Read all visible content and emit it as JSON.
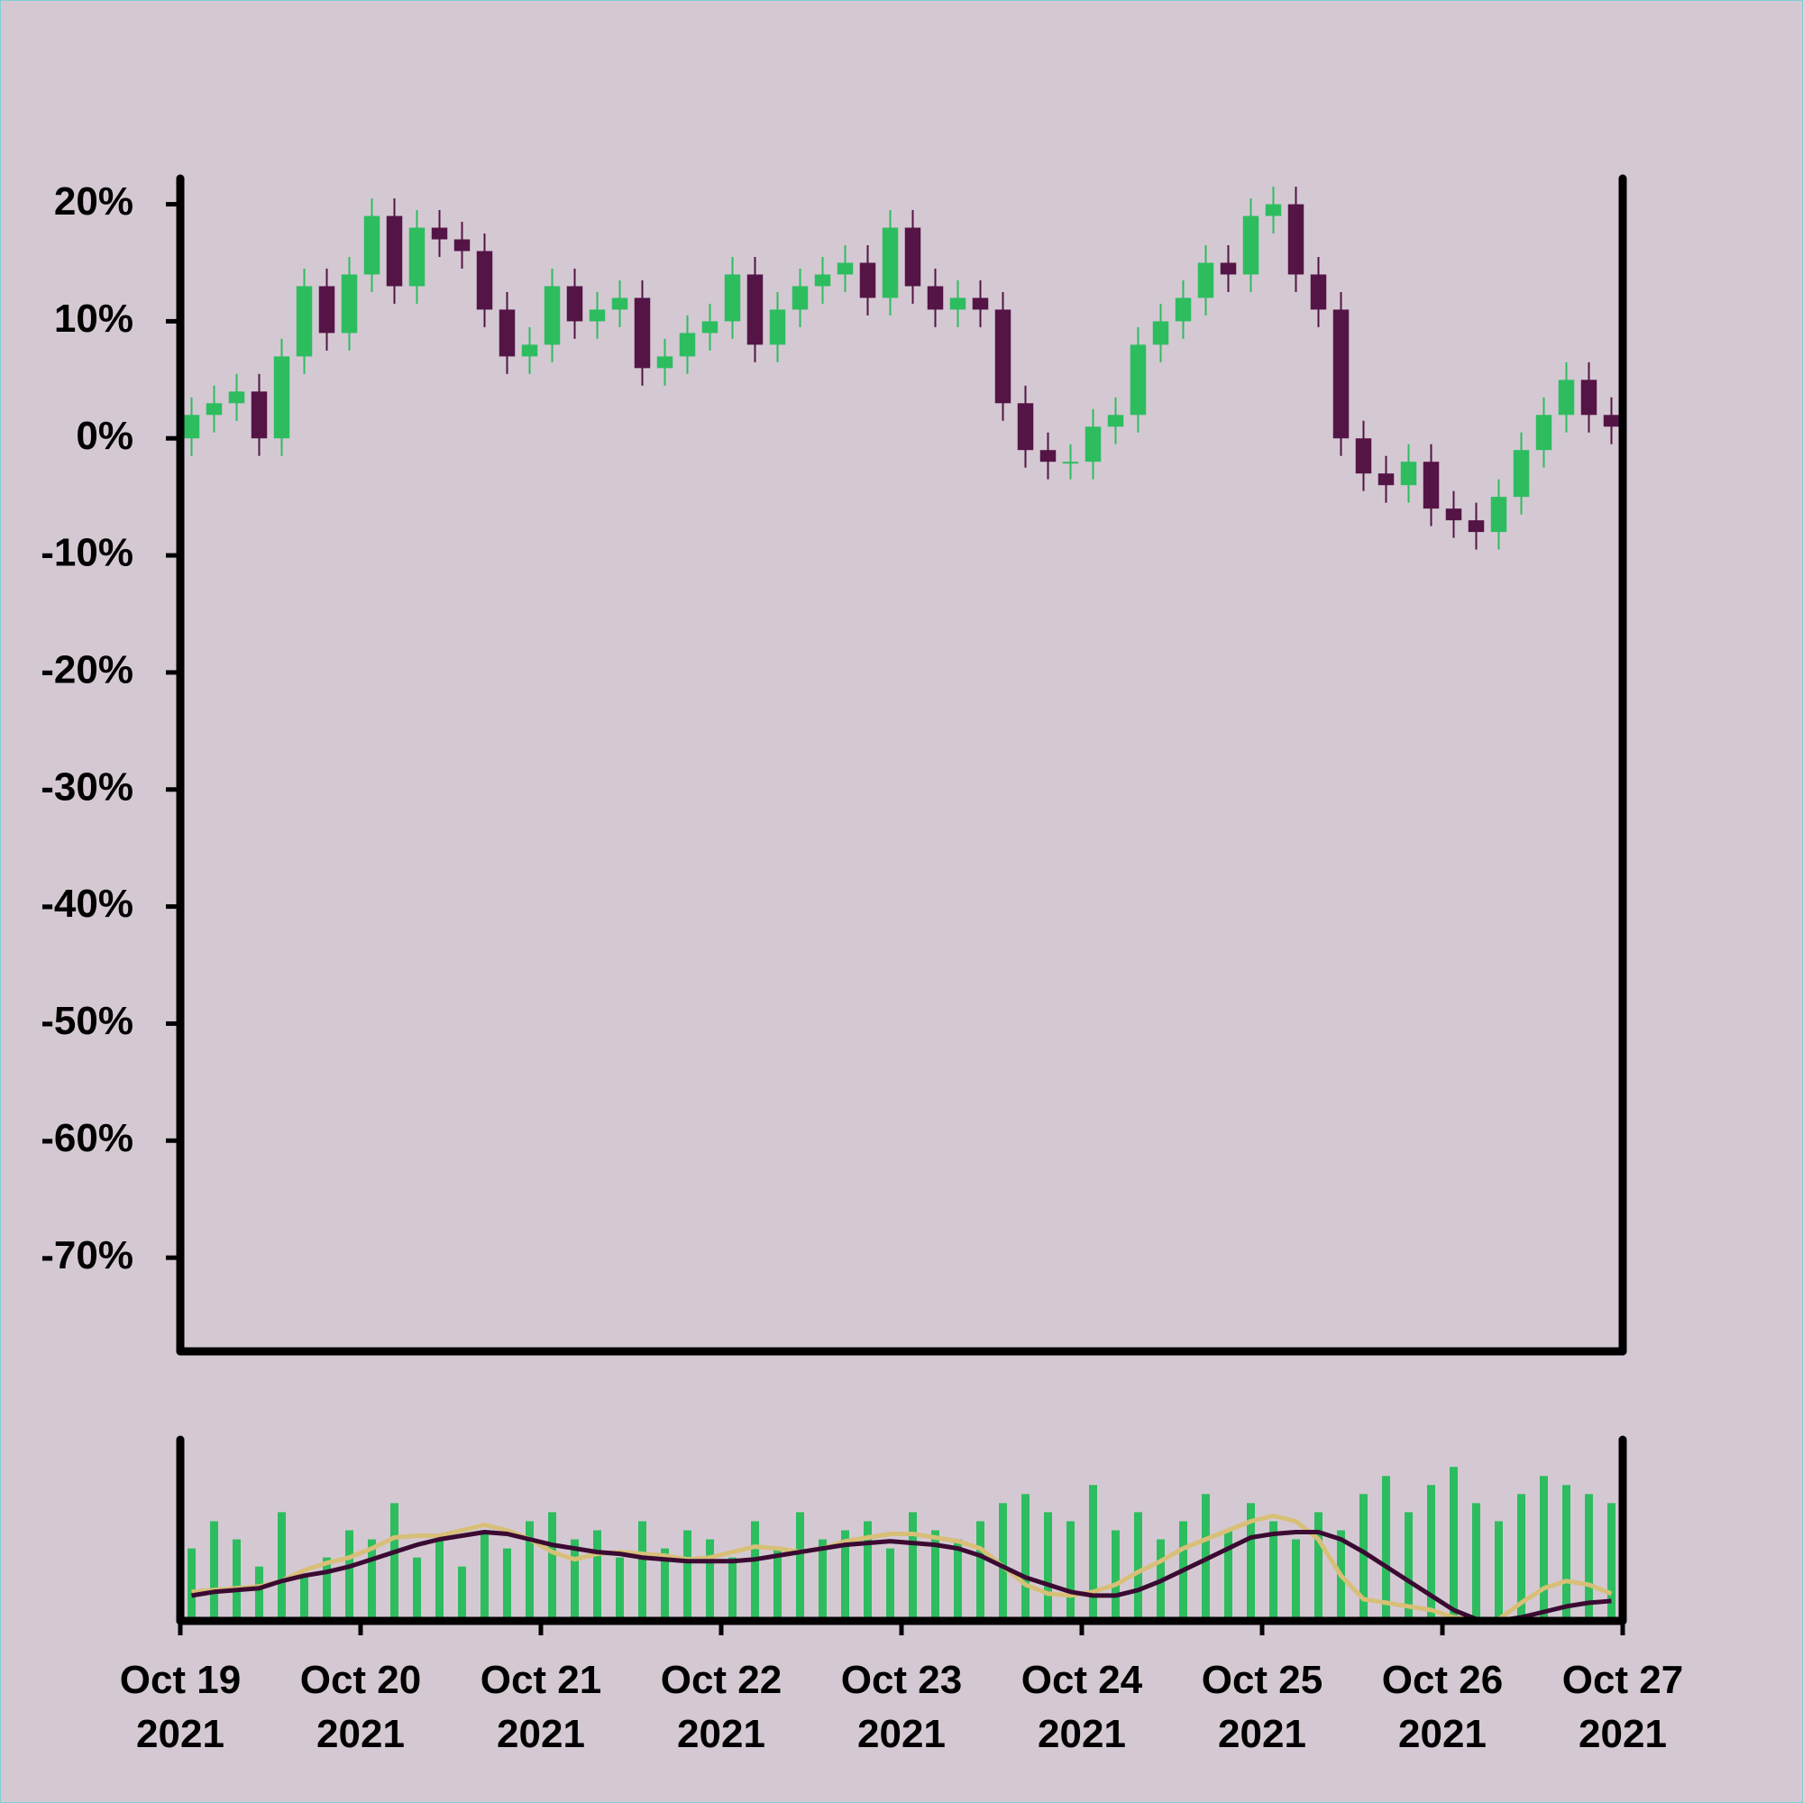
{
  "chart_data": {
    "type": "candlestick",
    "up_color": "#2dbd5f",
    "down_color": "#541446",
    "xlim": [
      0,
      64
    ],
    "xticks": [
      {
        "value": 0,
        "label": "Oct 19 2021"
      },
      {
        "value": 8,
        "label": "Oct 20 2021"
      },
      {
        "value": 16,
        "label": "Oct 21 2021"
      },
      {
        "value": 24,
        "label": "Oct 22 2021"
      },
      {
        "value": 32,
        "label": "Oct 23 2021"
      },
      {
        "value": 40,
        "label": "Oct 24 2021"
      },
      {
        "value": 48,
        "label": "Oct 25 2021"
      },
      {
        "value": 56,
        "label": "Oct 26 2021"
      },
      {
        "value": 64,
        "label": "Oct 27 2021"
      }
    ],
    "ylim": [
      -78,
      22.2
    ],
    "yticks": [
      {
        "value": 20,
        "label": "20%"
      },
      {
        "value": 10,
        "label": "10%"
      },
      {
        "value": 0,
        "label": "0%"
      },
      {
        "value": -10,
        "label": "-10%"
      },
      {
        "value": -20,
        "label": "-20%"
      },
      {
        "value": -30,
        "label": "-30%"
      },
      {
        "value": -40,
        "label": "-40%"
      },
      {
        "value": -50,
        "label": "-50%"
      },
      {
        "value": -60,
        "label": "-60%"
      },
      {
        "value": -70,
        "label": "-70%"
      }
    ],
    "open": [
      0,
      2,
      3,
      4,
      0,
      7,
      13,
      9,
      14,
      19,
      13,
      18,
      17,
      16,
      11,
      7,
      8,
      13,
      10,
      11,
      12,
      6,
      7,
      9,
      10,
      14,
      8,
      11,
      13,
      14,
      15,
      12,
      18,
      13,
      11,
      12,
      11,
      3,
      -1,
      -2,
      -2,
      1,
      2,
      8,
      10,
      12,
      15,
      14,
      19,
      20,
      14,
      11,
      0,
      -3,
      -4,
      -2,
      -6,
      -7,
      -8,
      -5,
      -1,
      2,
      5,
      2
    ],
    "high": [
      3.5,
      4.5,
      5.5,
      5.5,
      8.5,
      14.5,
      14.5,
      15.5,
      20.5,
      20.5,
      19.5,
      19.5,
      18.5,
      17.5,
      12.5,
      9.5,
      14.5,
      14.5,
      12.5,
      13.5,
      13.5,
      8.5,
      10.5,
      11.5,
      15.5,
      15.5,
      12.5,
      14.5,
      15.5,
      16.5,
      16.5,
      19.5,
      19.5,
      14.5,
      13.5,
      13.5,
      12.5,
      4.5,
      0.5,
      -0.5,
      2.5,
      3.5,
      9.5,
      11.5,
      13.5,
      16.5,
      16.5,
      20.5,
      21.5,
      21.5,
      15.5,
      12.5,
      1.5,
      -1.5,
      -0.5,
      -0.5,
      -4.5,
      -5.5,
      -3.5,
      0.5,
      3.5,
      6.5,
      6.5,
      3.5
    ],
    "low": [
      -1.5,
      0.5,
      1.5,
      -1.5,
      -1.5,
      5.5,
      7.5,
      7.5,
      12.5,
      11.5,
      11.5,
      15.5,
      14.5,
      9.5,
      5.5,
      5.5,
      6.5,
      8.5,
      8.5,
      9.5,
      4.5,
      4.5,
      5.5,
      7.5,
      8.5,
      6.5,
      6.5,
      9.5,
      11.5,
      12.5,
      10.5,
      10.5,
      11.5,
      9.5,
      9.5,
      9.5,
      1.5,
      -2.5,
      -3.5,
      -3.5,
      -3.5,
      -0.5,
      0.5,
      6.5,
      8.5,
      10.5,
      12.5,
      12.5,
      17.5,
      12.5,
      9.5,
      -1.5,
      -4.5,
      -5.5,
      -5.5,
      -7.5,
      -8.5,
      -9.5,
      -9.5,
      -6.5,
      -2.5,
      0.5,
      0.5,
      -0.5
    ],
    "close": [
      2,
      3,
      4,
      0,
      7,
      13,
      9,
      14,
      19,
      13,
      18,
      17,
      16,
      11,
      7,
      8,
      13,
      10,
      11,
      12,
      6,
      7,
      9,
      10,
      14,
      8,
      11,
      13,
      14,
      15,
      12,
      18,
      13,
      11,
      12,
      11,
      3,
      -1,
      -2,
      -2,
      1,
      2,
      8,
      10,
      12,
      15,
      14,
      19,
      20,
      14,
      11,
      0,
      -3,
      -4,
      -2,
      -6,
      -7,
      -8,
      -5,
      -1,
      2,
      5,
      2,
      1
    ],
    "volume_ylim": [
      0,
      100
    ],
    "volume_color": "#2dbd5f",
    "volume": [
      40,
      55,
      45,
      30,
      60,
      25,
      35,
      50,
      45,
      65,
      35,
      45,
      30,
      50,
      40,
      55,
      60,
      45,
      50,
      35,
      55,
      40,
      50,
      45,
      35,
      55,
      40,
      60,
      45,
      50,
      55,
      40,
      60,
      50,
      45,
      55,
      65,
      70,
      60,
      55,
      75,
      50,
      60,
      45,
      55,
      70,
      50,
      65,
      55,
      45,
      60,
      50,
      70,
      80,
      60,
      75,
      85,
      65,
      55,
      70,
      80,
      75,
      70,
      65
    ],
    "volume_lines": [
      {
        "color": "#d8bf78",
        "values": [
          16,
          17,
          18,
          19,
          22,
          28,
          32,
          35,
          40,
          46,
          47,
          47,
          50,
          53,
          50,
          45,
          38,
          34,
          37,
          38,
          37,
          36,
          34,
          35,
          38,
          41,
          40,
          38,
          40,
          44,
          46,
          48,
          48,
          46,
          44,
          40,
          30,
          20,
          15,
          14,
          16,
          20,
          27,
          33,
          40,
          45,
          50,
          55,
          58,
          55,
          45,
          25,
          12,
          10,
          8,
          6,
          2,
          0,
          1,
          10,
          18,
          22,
          20,
          15
        ]
      },
      {
        "color": "#3b0a32",
        "values": [
          14,
          16,
          17,
          18,
          22,
          25,
          27,
          30,
          34,
          38,
          42,
          45,
          47,
          49,
          48,
          45,
          42,
          40,
          38,
          37,
          35,
          34,
          33,
          33,
          33,
          34,
          36,
          38,
          40,
          42,
          43,
          44,
          43,
          42,
          40,
          36,
          30,
          24,
          20,
          16,
          14,
          14,
          17,
          22,
          28,
          34,
          40,
          46,
          48,
          49,
          49,
          45,
          38,
          30,
          22,
          14,
          6,
          1,
          0,
          2,
          5,
          8,
          10,
          11
        ]
      }
    ]
  }
}
